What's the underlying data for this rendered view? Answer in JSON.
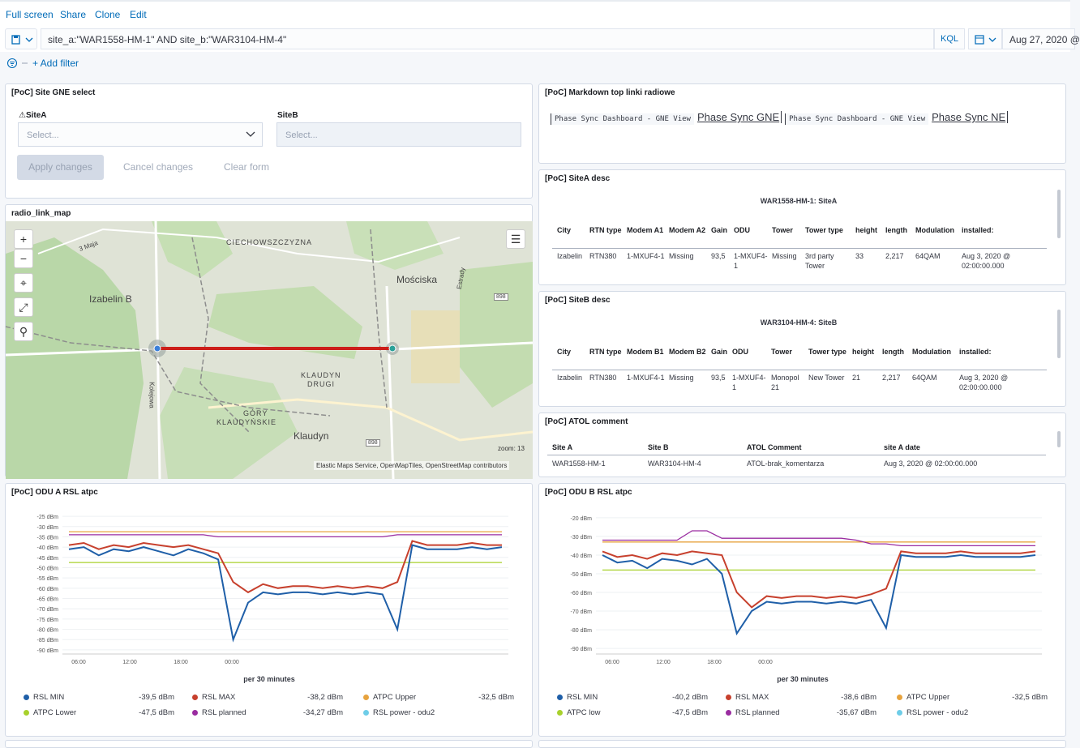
{
  "nav": {
    "fullscreen": "Full screen",
    "share": "Share",
    "clone": "Clone",
    "edit": "Edit"
  },
  "query": {
    "text": "site_a:\"WAR1558-HM-1\" AND site_b:\"WAR3104-HM-4\"",
    "lang": "KQL",
    "date": "Aug 27, 2020 @"
  },
  "filter": {
    "add": "+ Add filter"
  },
  "gne": {
    "title": "[PoC] Site GNE select",
    "siteA_label": "⚠SiteA",
    "siteB_label": "SiteB",
    "placeholder": "Select...",
    "apply": "Apply changes",
    "cancel": "Cancel changes",
    "clear": "Clear form"
  },
  "markdown": {
    "title": "[PoC] Markdown top linki radiowe",
    "code1": "Phase Sync Dashboard - GNE View",
    "link1": "Phase Sync GNE",
    "code2": "Phase Sync Dashboard - GNE View",
    "link2": "Phase Sync NE"
  },
  "map": {
    "title": "radio_link_map",
    "zoom": "zoom: 13",
    "attribution": "Elastic Maps Service, OpenMapTiles, OpenStreetMap contributors",
    "labels": {
      "a": "Izabelin B",
      "b": "Mościska",
      "c": "CIECHOWSZCZYZNA",
      "d": "KLAUDYN\nDRUGI",
      "d1": "KLAUDYN",
      "d2": "DRUGI",
      "e1": "GÓRY",
      "e2": "KLAUDYŃSKIE",
      "f": "Klaudyn",
      "g": "3 Maja",
      "h": "Estrady",
      "i": "898",
      "j": "Kolejowa"
    }
  },
  "siteA": {
    "title": "[PoC] SiteA desc",
    "caption": "WAR1558-HM-1: SiteA",
    "headers": [
      "City",
      "RTN type",
      "Modem A1",
      "Modem A2",
      "Gain",
      "ODU",
      "Tower",
      "Tower type",
      "height",
      "length",
      "Modulation",
      "installed:"
    ],
    "row": [
      "Izabelin",
      "RTN380",
      "1-MXUF4-1",
      "Missing",
      "93,5",
      "1-MXUF4-1",
      "Missing",
      "3rd party Tower",
      "33",
      "2,217",
      "64QAM",
      "Aug 3, 2020 @ 02:00:00.000"
    ]
  },
  "siteB": {
    "title": "[PoC] SiteB desc",
    "caption": "WAR3104-HM-4: SiteB",
    "headers": [
      "City",
      "RTN type",
      "Modem B1",
      "Modem B2",
      "Gain",
      "ODU",
      "Tower",
      "Tower type",
      "height",
      "length",
      "Modulation",
      "installed:"
    ],
    "row": [
      "Izabelin",
      "RTN380",
      "1-MXUF4-1",
      "Missing",
      "93,5",
      "1-MXUF4-1",
      "Monopol 21",
      "New Tower",
      "21",
      "2,217",
      "64QAM",
      "Aug 3, 2020 @ 02:00:00.000"
    ]
  },
  "atol": {
    "title": "[PoC] ATOL comment",
    "headers": [
      "Site A",
      "Site B",
      "ATOL Comment",
      "site A date"
    ],
    "row": [
      "WAR1558-HM-1",
      "WAR3104-HM-4",
      "ATOL-brak_komentarza",
      "Aug 3, 2020 @ 02:00:00.000"
    ]
  },
  "chart_data": [
    {
      "type": "line",
      "title": "[PoC] ODU A RSL atpc",
      "xlabel": "per 30 minutes",
      "ylabel": "",
      "x_ticks": [
        "06:00",
        "12:00",
        "18:00",
        "00:00"
      ],
      "y_ticks": [
        "-25 dBm",
        "-30 dBm",
        "-35 dBm",
        "-40 dBm",
        "-45 dBm",
        "-50 dBm",
        "-55 dBm",
        "-60 dBm",
        "-65 dBm",
        "-70 dBm",
        "-75 dBm",
        "-80 dBm",
        "-85 dBm",
        "-90 dBm"
      ],
      "ylim": [
        -92,
        -23
      ],
      "legend": [
        {
          "name": "RSL MIN",
          "value": "-39,5 dBm",
          "color": "#1f5fa8"
        },
        {
          "name": "RSL MAX",
          "value": "-38,2 dBm",
          "color": "#c7402d"
        },
        {
          "name": "ATPC Upper",
          "value": "-32,5 dBm",
          "color": "#e7a33e"
        },
        {
          "name": "ATPC Lower",
          "value": "-47,5 dBm",
          "color": "#a8d12c"
        },
        {
          "name": "RSL planned",
          "value": "-34,27 dBm",
          "color": "#9a2ca0"
        },
        {
          "name": "RSL power - odu2",
          "value": "",
          "color": "#6ecde8"
        }
      ],
      "series": [
        {
          "name": "ATPC Upper",
          "values": [
            -32.5,
            -32.5,
            -32.5,
            -32.5,
            -32.5,
            -32.5,
            -32.5,
            -32.5,
            -32.5,
            -32.5,
            -32.5,
            -32.5,
            -32.5,
            -32.5,
            -32.5,
            -32.5,
            -32.5,
            -32.5,
            -32.5,
            -32.5,
            -32.5,
            -32.5,
            -32.5,
            -32.5,
            -32.5,
            -32.5,
            -32.5,
            -32.5,
            -32.5,
            -32.5
          ]
        },
        {
          "name": "ATPC Lower",
          "values": [
            -47.5,
            -47.5,
            -47.5,
            -47.5,
            -47.5,
            -47.5,
            -47.5,
            -47.5,
            -47.5,
            -47.5,
            -47.5,
            -47.5,
            -47.5,
            -47.5,
            -47.5,
            -47.5,
            -47.5,
            -47.5,
            -47.5,
            -47.5,
            -47.5,
            -47.5,
            -47.5,
            -47.5,
            -47.5,
            -47.5,
            -47.5,
            -47.5,
            -47.5,
            -47.5
          ]
        },
        {
          "name": "RSL planned",
          "values": [
            -34,
            -34,
            -34,
            -34,
            -34,
            -34,
            -34,
            -34,
            -34,
            -34,
            -35,
            -35,
            -35,
            -35,
            -35,
            -35,
            -35,
            -35,
            -35,
            -35,
            -35,
            -35,
            -34,
            -34,
            -34,
            -34,
            -34,
            -34,
            -34,
            -34
          ]
        },
        {
          "name": "RSL MAX",
          "values": [
            -39,
            -38,
            -41,
            -39,
            -40,
            -38,
            -39,
            -40,
            -39,
            -41,
            -43,
            -57,
            -62,
            -58,
            -60,
            -59,
            -59,
            -60,
            -59,
            -60,
            -59,
            -60,
            -57,
            -37,
            -39,
            -39,
            -39,
            -38,
            -39,
            -39
          ]
        },
        {
          "name": "RSL MIN",
          "values": [
            -41,
            -40,
            -44,
            -41,
            -42,
            -40,
            -42,
            -44,
            -41,
            -43,
            -46,
            -85,
            -67,
            -62,
            -63,
            -62,
            -62,
            -63,
            -62,
            -63,
            -62,
            -63,
            -80,
            -39,
            -41,
            -41,
            -41,
            -40,
            -41,
            -40
          ]
        }
      ]
    },
    {
      "type": "line",
      "title": "[PoC] ODU B RSL atpc",
      "xlabel": "per 30 minutes",
      "ylabel": "",
      "x_ticks": [
        "06:00",
        "12:00",
        "18:00",
        "00:00"
      ],
      "y_ticks": [
        "-20 dBm",
        "-30 dBm",
        "-40 dBm",
        "-50 dBm",
        "-60 dBm",
        "-70 dBm",
        "-80 dBm",
        "-90 dBm"
      ],
      "ylim": [
        -93,
        -17
      ],
      "legend": [
        {
          "name": "RSL MIN",
          "value": "-40,2 dBm",
          "color": "#1f5fa8"
        },
        {
          "name": "RSL MAX",
          "value": "-38,6 dBm",
          "color": "#c7402d"
        },
        {
          "name": "ATPC Upper",
          "value": "-32,5 dBm",
          "color": "#e7a33e"
        },
        {
          "name": "ATPC low",
          "value": "-47,5 dBm",
          "color": "#a8d12c"
        },
        {
          "name": "RSL planned",
          "value": "-35,67 dBm",
          "color": "#9a2ca0"
        },
        {
          "name": "RSL power - odu2",
          "value": "",
          "color": "#6ecde8"
        }
      ],
      "series": [
        {
          "name": "ATPC Upper",
          "values": [
            -33,
            -33,
            -33,
            -33,
            -33,
            -33,
            -33,
            -33,
            -33,
            -33,
            -33,
            -33,
            -33,
            -33,
            -33,
            -33,
            -33,
            -33,
            -33,
            -33,
            -33,
            -33,
            -33,
            -33,
            -33,
            -33,
            -33,
            -33,
            -33,
            -33
          ]
        },
        {
          "name": "ATPC low",
          "values": [
            -48,
            -48,
            -48,
            -48,
            -48,
            -48,
            -48,
            -48,
            -48,
            -48,
            -48,
            -48,
            -48,
            -48,
            -48,
            -48,
            -48,
            -48,
            -48,
            -48,
            -48,
            -48,
            -48,
            -48,
            -48,
            -48,
            -48,
            -48,
            -48,
            -48
          ]
        },
        {
          "name": "RSL planned",
          "values": [
            -32,
            -32,
            -32,
            -32,
            -32,
            -32,
            -27,
            -27,
            -31,
            -31,
            -31,
            -31,
            -31,
            -31,
            -31,
            -31,
            -31,
            -32,
            -34,
            -34,
            -35,
            -35,
            -35,
            -35,
            -35,
            -35,
            -35,
            -35,
            -35,
            -35
          ]
        },
        {
          "name": "RSL MAX",
          "values": [
            -38,
            -41,
            -40,
            -42,
            -39,
            -40,
            -38,
            -39,
            -40,
            -60,
            -68,
            -62,
            -63,
            -62,
            -62,
            -63,
            -62,
            -63,
            -61,
            -58,
            -38,
            -39,
            -39,
            -39,
            -38,
            -39,
            -39,
            -39,
            -39,
            -38
          ]
        },
        {
          "name": "RSL MIN",
          "values": [
            -40,
            -44,
            -43,
            -47,
            -42,
            -43,
            -45,
            -42,
            -50,
            -82,
            -70,
            -65,
            -66,
            -65,
            -65,
            -66,
            -65,
            -66,
            -64,
            -79,
            -40,
            -41,
            -41,
            -41,
            -40,
            -41,
            -41,
            -41,
            -41,
            -40
          ]
        }
      ]
    }
  ]
}
